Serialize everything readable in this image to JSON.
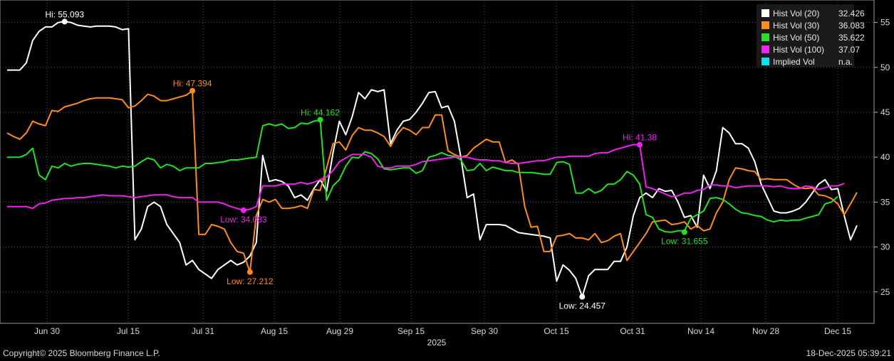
{
  "chart_data": {
    "type": "line",
    "x_axis_ticks": [
      "Jun 30",
      "Jul 15",
      "Jul 31",
      "Aug 15",
      "Aug 29",
      "Sep 15",
      "Sep 30",
      "Oct 15",
      "Oct 31",
      "Nov 14",
      "Nov 28",
      "Dec 15"
    ],
    "x_axis_year": "2025",
    "y_axis_ticks": [
      25,
      30,
      35,
      40,
      45,
      50,
      55
    ],
    "ylim": [
      21.5,
      57.5
    ],
    "y_axis_side": "right",
    "grid": "dotted",
    "legend_position": "top-right",
    "series": [
      {
        "name": "Hist Vol (20)",
        "legend_value": "32.426",
        "color": "#ffffff",
        "values": [
          49.7,
          49.7,
          49.7,
          50.5,
          53,
          54,
          54.5,
          54.5,
          55,
          55.1,
          55,
          54.7,
          54.6,
          54.5,
          54.6,
          54.6,
          54.6,
          54.5,
          54.2,
          54.3,
          30.8,
          32,
          34.5,
          35,
          34.5,
          32.5,
          31.5,
          30.5,
          28,
          28.5,
          27.5,
          27,
          26.5,
          27.5,
          28,
          28.5,
          28,
          28.3,
          29,
          30.5,
          40.2,
          37.3,
          37.5,
          37.3,
          36.8,
          35.5,
          35.8,
          35.2,
          36.5,
          37.5,
          36.2,
          40.5,
          44,
          42.5,
          44.5,
          47.2,
          46.5,
          47.5,
          47.3,
          47.5,
          41.5,
          43,
          44,
          44.2,
          45,
          46,
          47.2,
          47.3,
          45.5,
          45.7,
          44,
          40,
          35.5,
          35.9,
          30.8,
          32.5,
          32.5,
          32.5,
          32.4,
          32,
          31.6,
          31.5,
          31.4,
          31.3,
          31.2,
          31,
          26.2,
          28,
          27.4,
          26.5,
          24.457,
          26.8,
          27.5,
          27.5,
          27.5,
          28.4,
          28.4,
          30,
          33.5,
          35.5,
          36,
          35.5,
          36.5,
          36.2,
          36.3,
          35,
          33.3,
          33.5,
          32.2,
          38,
          36.5,
          38.5,
          43.3,
          42.7,
          41.5,
          41.5,
          41,
          39.5,
          37,
          35.5,
          34,
          33.8,
          33.8,
          34,
          34.3,
          35,
          36,
          37,
          37.5,
          36.4,
          36.5,
          33.5,
          30.8,
          32.4
        ]
      },
      {
        "name": "Hist Vol (30)",
        "legend_value": "36.083",
        "color": "#ff8c1a",
        "values": [
          42.7,
          42.3,
          42,
          42.7,
          44,
          43.7,
          43.5,
          45.2,
          45.1,
          45.6,
          45.8,
          46,
          46.3,
          46.5,
          46.6,
          46.6,
          46.6,
          46.5,
          46.4,
          45.5,
          45.7,
          46.3,
          47,
          46.8,
          46.3,
          46.3,
          46.5,
          46.7,
          46.9,
          47.394,
          31.4,
          31.4,
          32.5,
          32.3,
          32,
          30.5,
          29.5,
          29.3,
          27.212,
          33.5,
          35.3,
          35,
          35.3,
          34.3,
          34.3,
          34.4,
          34.6,
          34.3,
          36.4,
          36.3,
          38.8,
          41.5,
          41.7,
          40.8,
          42.4,
          43.3,
          43,
          43,
          42.7,
          42.3,
          41.2,
          42.5,
          43.3,
          43,
          42.5,
          43.3,
          43.3,
          44.7,
          44.7,
          40.7,
          40.3,
          40,
          40.2,
          41,
          41.5,
          42,
          41.7,
          41.7,
          39.4,
          39.7,
          39.2,
          34.5,
          32.2,
          32.3,
          29.5,
          29.5,
          31.2,
          31.3,
          31.5,
          31,
          31,
          30.8,
          31.5,
          30.5,
          30.7,
          31.2,
          31.5,
          28.5,
          29.5,
          30.5,
          31.5,
          32.8,
          32.9,
          33,
          32.5,
          32.6,
          32.8,
          32,
          32.4,
          31.8,
          32,
          33.8,
          35,
          37.5,
          38.8,
          38.7,
          38.5,
          38.4,
          37.5,
          37.6,
          37.5,
          37.5,
          37.5,
          37,
          36.6,
          36.5,
          36.6,
          35.8,
          35.7,
          35.4,
          34.8,
          33.6,
          34.8,
          36.083
        ]
      },
      {
        "name": "Hist Vol (50)",
        "legend_value": "35.622",
        "color": "#22e022",
        "values": [
          40,
          40,
          40,
          40.3,
          41,
          38,
          37.5,
          39,
          38.8,
          39.3,
          39,
          39.2,
          39.3,
          39.3,
          39.2,
          39.1,
          39,
          38.8,
          39,
          38.9,
          39,
          39.5,
          39.9,
          39.7,
          38.8,
          39.2,
          39,
          38.5,
          38.8,
          38.8,
          38.8,
          39.3,
          39.3,
          39.4,
          39.5,
          39.7,
          39.7,
          39.8,
          39.9,
          40,
          43.5,
          43.7,
          43.5,
          43.7,
          43.2,
          43.3,
          43.8,
          43.7,
          44,
          44.162,
          35.2,
          36.8,
          37.5,
          39,
          40,
          39.9,
          40.6,
          40.4,
          39.8,
          38.7,
          38.6,
          38.7,
          38.8,
          38.8,
          38.2,
          38.5,
          40,
          40.2,
          40.5,
          40.2,
          40.1,
          39.7,
          38.5,
          38.6,
          39.3,
          38.5,
          38.9,
          38.7,
          38.5,
          38.5,
          38.3,
          38.3,
          38.3,
          38.2,
          38.1,
          38.1,
          39.4,
          39.5,
          39.2,
          36,
          36,
          36.5,
          36,
          36.3,
          37,
          37,
          37.5,
          38.4,
          38,
          37,
          33.6,
          33.3,
          32,
          31.7,
          31.655,
          31.8,
          31.8,
          33.2,
          33.6,
          34,
          35.4,
          35.5,
          35.3,
          34.8,
          34.2,
          33.8,
          33.7,
          33.5,
          33.4,
          33,
          32.8,
          33,
          32.9,
          33,
          33,
          33.2,
          33.4,
          33.6,
          34.8,
          35,
          35.622
        ]
      },
      {
        "name": "Hist Vol (100)",
        "legend_value": "37.07",
        "color": "#ee22ee",
        "values": [
          34.5,
          34.5,
          34.5,
          34.5,
          34.3,
          34.8,
          34.9,
          35.2,
          35.3,
          35.4,
          35.4,
          35.5,
          35.5,
          35.6,
          35.7,
          35.8,
          35.7,
          35.7,
          35.7,
          35.6,
          35.5,
          35.6,
          35.7,
          35.8,
          35.8,
          35.8,
          35.6,
          35.5,
          35.5,
          35.5,
          35,
          35,
          35,
          35,
          34.8,
          34.5,
          34.3,
          34.083,
          34.2,
          34.5,
          36.8,
          36.8,
          36.8,
          37,
          37,
          37,
          37.2,
          37,
          37.2,
          37.5,
          37.8,
          38.5,
          39.5,
          39.9,
          40.3,
          40.3,
          40.3,
          40,
          39,
          38.8,
          38.8,
          39,
          39,
          39,
          39.2,
          39.5,
          39.6,
          39.7,
          39.8,
          39.9,
          40,
          40,
          40,
          39.8,
          39.7,
          39.7,
          39.6,
          39.6,
          39.4,
          39.3,
          39.3,
          39.4,
          39.5,
          39.6,
          39.6,
          39.8,
          40,
          40,
          40.1,
          40.1,
          40.1,
          40.1,
          40.4,
          40.5,
          40.5,
          40.8,
          41,
          41.2,
          41.4,
          41.38,
          36.7,
          36.5,
          36.2,
          35.9,
          35.6,
          35.7,
          36,
          36,
          36.3,
          36.4,
          36.9,
          36.9,
          36.8,
          36.8,
          36.6,
          36.7,
          36.8,
          36.8,
          36.8,
          36.8,
          36.7,
          36.8,
          36.6,
          36.5,
          36.5,
          36.8,
          36.7,
          36.4,
          36.6,
          36.8,
          36.8,
          37.07
        ]
      },
      {
        "name": "Implied Vol",
        "legend_value": "n.a.",
        "color": "#00e5ee",
        "values": []
      }
    ],
    "annotations": [
      {
        "series": 0,
        "index": 9,
        "value": 55.093,
        "text": "Hi: 55.093",
        "side": "above"
      },
      {
        "series": 0,
        "index": 90,
        "value": 24.457,
        "text": "Low: 24.457",
        "side": "below"
      },
      {
        "series": 1,
        "index": 29,
        "value": 47.394,
        "text": "Hi: 47.394",
        "side": "above"
      },
      {
        "series": 1,
        "index": 38,
        "value": 27.212,
        "text": "Low: 27.212",
        "side": "below"
      },
      {
        "series": 2,
        "index": 49,
        "value": 44.162,
        "text": "Hi: 44.162",
        "side": "above"
      },
      {
        "series": 2,
        "index": 106,
        "value": 31.655,
        "text": "Low: 31.655",
        "side": "below"
      },
      {
        "series": 3,
        "index": 37,
        "value": 34.083,
        "text": "Low: 34.083",
        "side": "below"
      },
      {
        "series": 3,
        "index": 99,
        "value": 41.38,
        "text": "Hi: 41.38",
        "side": "above"
      }
    ]
  },
  "footer": {
    "copyright": "Copyright© 2025 Bloomberg Finance L.P.",
    "timestamp": "18-Dec-2025 05:39:21"
  }
}
